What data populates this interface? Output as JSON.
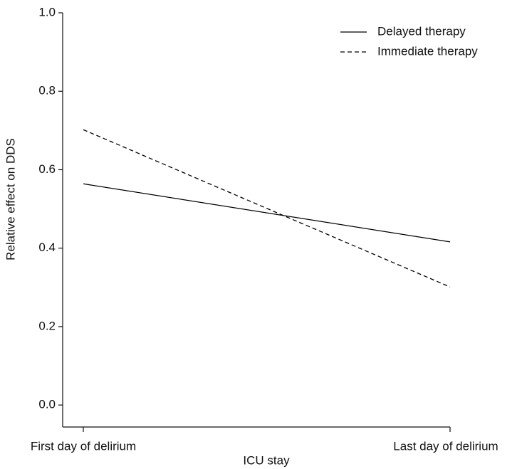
{
  "chart_data": {
    "type": "line",
    "x_label": "ICU stay",
    "y_label": "Relative effect on DDS",
    "categories": [
      "First day of delirium",
      "Last day of delirium"
    ],
    "series": [
      {
        "name": "Delayed therapy",
        "color": "#000000",
        "line_style": "solid",
        "values": [
          0.564,
          0.416
        ]
      },
      {
        "name": "Immediate therapy",
        "color": "#000000",
        "line_style": "dashed",
        "values": [
          0.702,
          0.301
        ]
      }
    ],
    "ylim": [
      -0.056,
      1.0
    ],
    "yticks": [
      {
        "value": 0,
        "label": "0.0"
      },
      0.2,
      0.4,
      0.6,
      0.8,
      {
        "value": 1,
        "label": "1.0"
      }
    ],
    "legend": "top-right",
    "grid": false
  }
}
